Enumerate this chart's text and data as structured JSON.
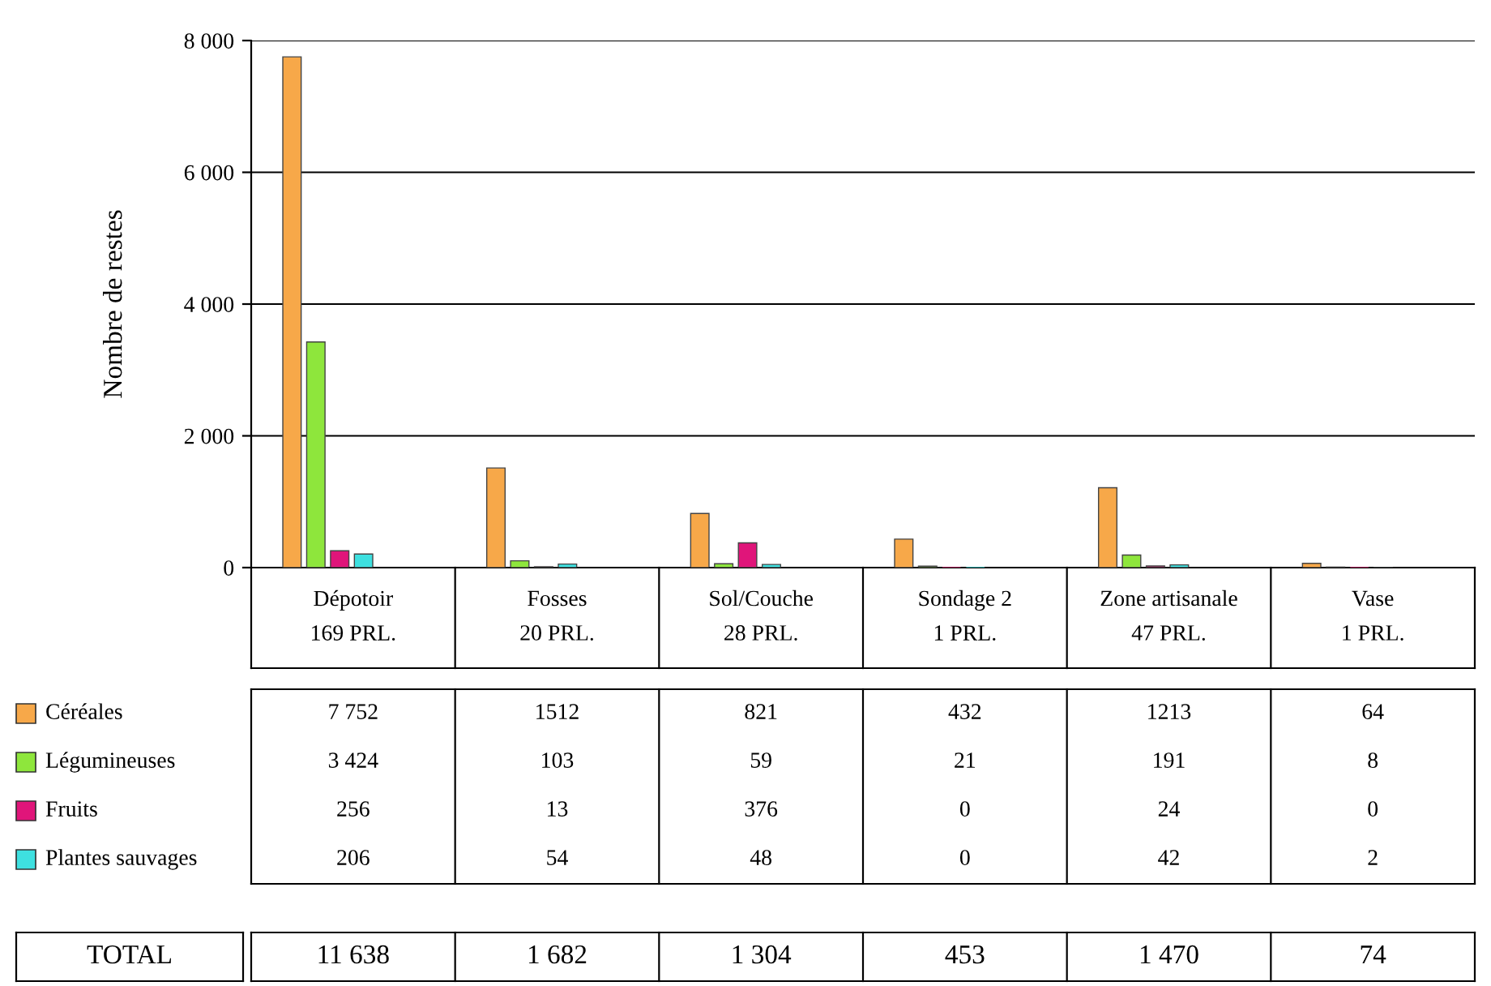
{
  "chart_data": {
    "type": "bar",
    "ylabel": "Nombre de restes",
    "categories": [
      "Dépotoir\n169 PRL.",
      "Fosses\n20 PRL.",
      "Sol/Couche\n28 PRL.",
      "Sondage 2\n1 PRL.",
      "Zone artisanale\n47 PRL.",
      "Vase\n1 PRL."
    ],
    "series": [
      {
        "name": "Céréales",
        "color": "#f7a849",
        "values": [
          7752,
          1512,
          821,
          432,
          1213,
          64
        ],
        "value_labels": [
          "7 752",
          "1512",
          "821",
          "432",
          "1213",
          "64"
        ]
      },
      {
        "name": "Légumineuses",
        "color": "#8ee63c",
        "values": [
          3424,
          103,
          59,
          21,
          191,
          8
        ],
        "value_labels": [
          "3 424",
          "103",
          "59",
          "21",
          "191",
          "8"
        ]
      },
      {
        "name": "Fruits",
        "color": "#e0157a",
        "values": [
          256,
          13,
          376,
          0,
          24,
          0
        ],
        "value_labels": [
          "256",
          "13",
          "376",
          "0",
          "24",
          "0"
        ]
      },
      {
        "name": "Plantes sauvages",
        "color": "#3ee0e0",
        "values": [
          206,
          54,
          48,
          0,
          42,
          2
        ],
        "value_labels": [
          "206",
          "54",
          "48",
          "0",
          "42",
          "2"
        ]
      }
    ],
    "annotations": [
      "TOTAL",
      "11 638",
      "1 682",
      "1 304",
      "453",
      "1 470",
      "74"
    ],
    "ylim": [
      0,
      8000
    ],
    "yticks": [
      0,
      {
        "value": 2000,
        "label": "2 000"
      },
      {
        "value": 4000,
        "label": "4 000"
      },
      {
        "value": 6000,
        "label": "6 000"
      },
      {
        "value": 8000,
        "label": "8 000"
      }
    ],
    "grid": "y",
    "legend": "bottom left"
  }
}
